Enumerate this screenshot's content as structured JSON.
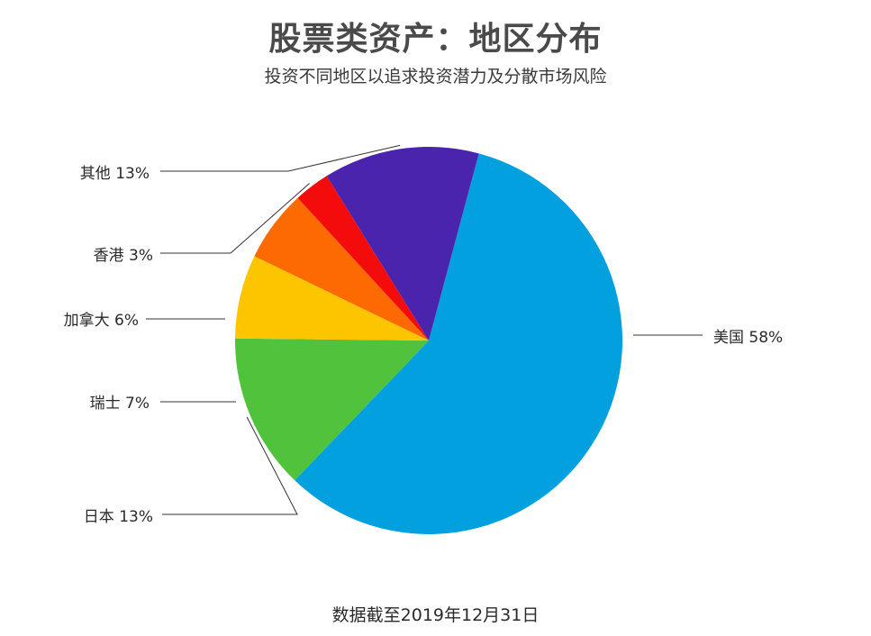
{
  "header": {
    "title": "股票类资产：地区分布",
    "subtitle": "投资不同地区以追求投资潜力及分散市场风险"
  },
  "footer": {
    "note": "数据截至2019年12月31日"
  },
  "chart_data": {
    "type": "pie",
    "title": "股票类资产：地区分布",
    "subtitle": "投资不同地区以追求投资潜力及分散市场风险",
    "unit": "%",
    "slices": [
      {
        "label": "美国",
        "value": 58,
        "display": "美国 58%",
        "color": "#03a0df"
      },
      {
        "label": "日本",
        "value": 13,
        "display": "日本 13%",
        "color": "#50c23b"
      },
      {
        "label": "瑞士",
        "value": 7,
        "display": "瑞士 7%",
        "color": "#fcc500"
      },
      {
        "label": "加拿大",
        "value": 6,
        "display": "加拿大 6%",
        "color": "#fd6a02"
      },
      {
        "label": "香港",
        "value": 3,
        "display": "香港 3%",
        "color": "#f40b0b"
      },
      {
        "label": "其他",
        "value": 13,
        "display": "其他 13%",
        "color": "#4b24ad"
      }
    ],
    "legend": "none",
    "labels": "outside-with-leader-lines"
  }
}
